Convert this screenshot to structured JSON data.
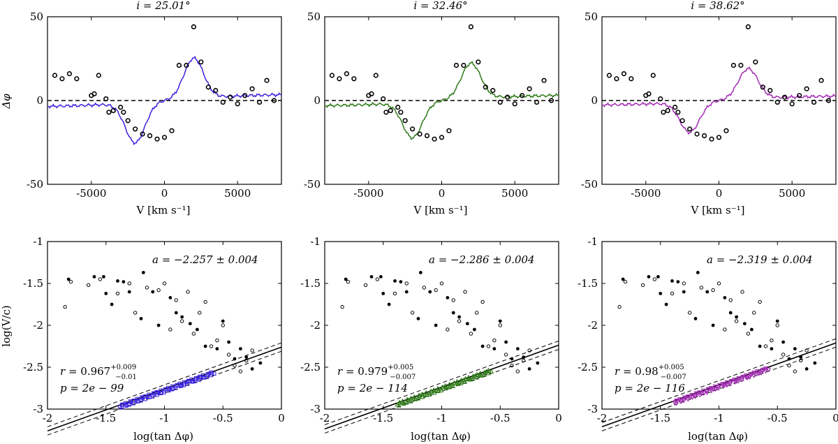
{
  "top_row": {
    "xlabel": "V [km s⁻¹]",
    "ylabel": "Δφ",
    "xlim": [
      -8000,
      8000
    ],
    "ylim": [
      -50,
      50
    ],
    "xticks": [
      -5000,
      0,
      5000
    ],
    "xtick_labels": [
      "-5000",
      "0",
      "5000"
    ],
    "yticks": [
      -50,
      0,
      50
    ],
    "ytick_labels": [
      "-50",
      "0",
      "50"
    ],
    "observed_points": {
      "x": [
        -7500,
        -7000,
        -6500,
        -6000,
        -5000,
        -4800,
        -4500,
        -4000,
        -3800,
        -3500,
        -3000,
        -2800,
        -2500,
        -2000,
        -1500,
        -1000,
        -500,
        0,
        500,
        1000,
        1500,
        2000,
        2500,
        3000,
        3500,
        4000,
        4500,
        5000,
        5500,
        6000,
        6500,
        7000,
        7500
      ],
      "y": [
        15,
        13,
        16,
        13,
        3,
        4,
        15,
        1,
        -7,
        -6,
        -4,
        -7,
        -12,
        -17,
        -20,
        -21,
        -23,
        -22,
        -18,
        21,
        21,
        44,
        23,
        8,
        6,
        -1,
        2,
        -2,
        3,
        7,
        -1,
        12,
        0
      ]
    }
  },
  "panels": [
    {
      "title": "i = 25.01°",
      "color": "#3a22e0",
      "model_scale": 1.0,
      "fit": {
        "a": -2.257,
        "a_err": 0.004,
        "a_label": "a = −2.257 ± 0.004",
        "r": "0.967",
        "r_plus": "+0.009",
        "r_minus": "−0.01",
        "p_label": "p = 2e − 99"
      }
    },
    {
      "title": "i = 32.46°",
      "color": "#2d7a17",
      "model_scale": 0.88,
      "fit": {
        "a": -2.286,
        "a_err": 0.004,
        "a_label": "a = −2.286 ± 0.004",
        "r": "0.979",
        "r_plus": "+0.005",
        "r_minus": "−0.007",
        "p_label": "p = 2e − 114"
      }
    },
    {
      "title": "i = 38.62°",
      "color": "#a22bb3",
      "model_scale": 0.75,
      "fit": {
        "a": -2.319,
        "a_err": 0.004,
        "a_label": "a = −2.319 ± 0.004",
        "r": "0.98",
        "r_plus": "+0.005",
        "r_minus": "−0.007",
        "p_label": "p = 2e − 116"
      }
    }
  ],
  "bottom_row": {
    "xlabel": "log(tan Δφ)",
    "ylabel": "log(V/c)",
    "xlim": [
      -2,
      0
    ],
    "ylim": [
      -3,
      -1
    ],
    "xticks": [
      -2,
      -1.5,
      -1,
      -0.5,
      0
    ],
    "xtick_labels": [
      "-2",
      "-1.5",
      "-1",
      "-0.5",
      "0"
    ],
    "yticks": [
      -3,
      -2.5,
      -2,
      -1.5,
      -1
    ],
    "ytick_labels": [
      "-3",
      "-2.5",
      "-2",
      "-1.5",
      "-1"
    ],
    "filled_points": {
      "x": [
        -1.82,
        -1.6,
        -1.52,
        -1.5,
        -1.45,
        -1.4,
        -1.35,
        -1.3,
        -1.2,
        -1.18,
        -1.1,
        -1.05,
        -0.95,
        -0.9,
        -0.85,
        -0.78,
        -0.72,
        -0.65,
        -0.55,
        -0.5,
        -0.45,
        -0.4,
        -0.35,
        -0.3,
        -0.25,
        -0.18
      ],
      "y": [
        -1.45,
        -1.42,
        -1.42,
        -1.62,
        -1.75,
        -1.47,
        -1.48,
        -1.6,
        -1.92,
        -1.37,
        -1.6,
        -2.0,
        -1.67,
        -1.85,
        -1.9,
        -1.98,
        -2.05,
        -2.25,
        -2.28,
        -1.95,
        -2.2,
        -2.4,
        -2.28,
        -2.38,
        -2.52,
        -2.45
      ]
    },
    "open_points": {
      "x": [
        -1.85,
        -1.8,
        -1.65,
        -1.55,
        -1.4,
        -1.3,
        -1.25,
        -1.15,
        -1.05,
        -1.0,
        -0.95,
        -0.9,
        -0.85,
        -0.8,
        -0.75,
        -0.7,
        -0.65,
        -0.6,
        -0.55,
        -0.5,
        -0.45,
        -0.4,
        -0.35,
        -0.3,
        -0.25
      ],
      "y": [
        -1.78,
        -1.48,
        -1.52,
        -1.45,
        -1.62,
        -1.5,
        -1.85,
        -1.55,
        -1.58,
        -1.5,
        -2.05,
        -1.7,
        -1.95,
        -1.6,
        -2.1,
        -1.85,
        -1.72,
        -2.25,
        -2.18,
        -2.0,
        -2.35,
        -2.48,
        -2.55,
        -2.42,
        -2.3
      ]
    }
  }
}
